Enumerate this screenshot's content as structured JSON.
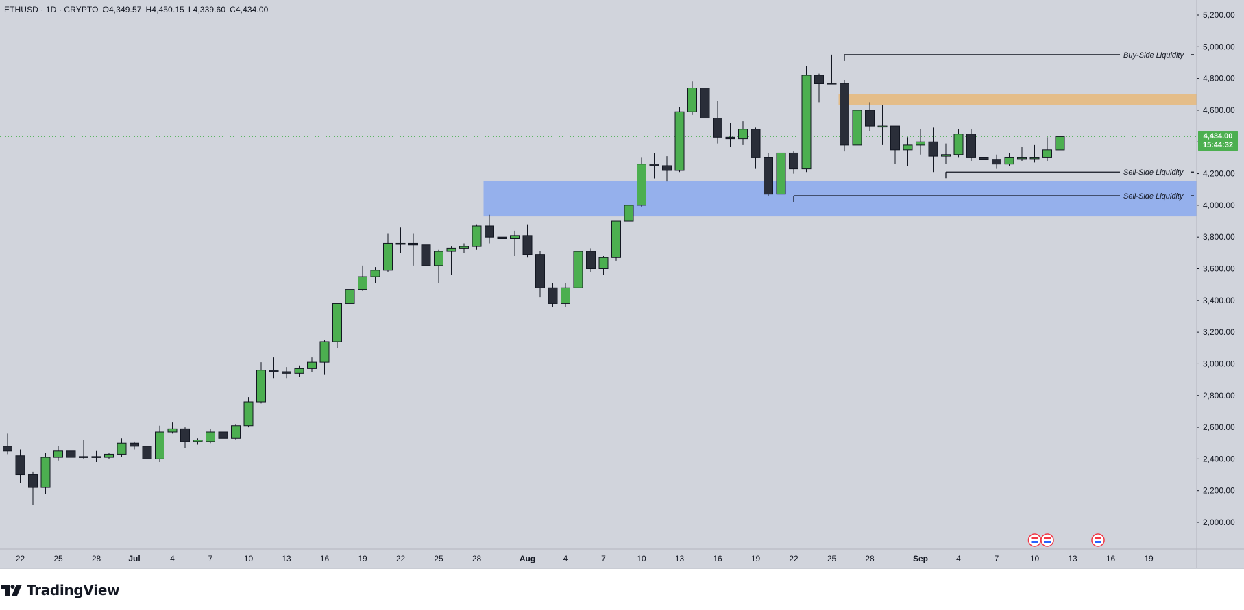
{
  "legend": {
    "symbol": "ETHUSD · 1D · CRYPTO",
    "open": "O4,349.57",
    "high": "H4,450.15",
    "low": "L4,339.60",
    "close": "C4,434.00"
  },
  "price_tag": {
    "price": "4,434.00",
    "countdown": "15:44:32"
  },
  "brand": {
    "name": "TradingView"
  },
  "annotations": {
    "buy_side": "Buy-Side Liquidity",
    "sell_side_1": "Sell-Side Liquidity",
    "sell_side_2": "Sell-Side Liquidity"
  },
  "colors": {
    "up": "#4caf50",
    "down": "#2a2e39",
    "background": "#d1d4dc",
    "supply_zone": "#e8b97a",
    "demand_zone": "#8ba9ef"
  },
  "chart_data": {
    "type": "candlestick",
    "title": "",
    "xlabel": "",
    "ylabel": "",
    "ylim": [
      1840,
      5260
    ],
    "y_ticks": [
      "5,200.00",
      "5,000.00",
      "4,800.00",
      "4,600.00",
      "4,400.00",
      "4,200.00",
      "4,000.00",
      "3,800.00",
      "3,600.00",
      "3,400.00",
      "3,200.00",
      "3,000.00",
      "2,800.00",
      "2,600.00",
      "2,400.00",
      "2,200.00",
      "2,000.00"
    ],
    "x_ticks": [
      {
        "label": "22",
        "index": 1
      },
      {
        "label": "25",
        "index": 4
      },
      {
        "label": "28",
        "index": 7
      },
      {
        "label": "Jul",
        "index": 10,
        "bold": true
      },
      {
        "label": "4",
        "index": 13
      },
      {
        "label": "7",
        "index": 16
      },
      {
        "label": "10",
        "index": 19
      },
      {
        "label": "13",
        "index": 22
      },
      {
        "label": "16",
        "index": 25
      },
      {
        "label": "19",
        "index": 28
      },
      {
        "label": "22",
        "index": 31
      },
      {
        "label": "25",
        "index": 34
      },
      {
        "label": "28",
        "index": 37
      },
      {
        "label": "Aug",
        "index": 41,
        "bold": true
      },
      {
        "label": "4",
        "index": 44
      },
      {
        "label": "7",
        "index": 47
      },
      {
        "label": "10",
        "index": 50
      },
      {
        "label": "13",
        "index": 53
      },
      {
        "label": "16",
        "index": 56
      },
      {
        "label": "19",
        "index": 59
      },
      {
        "label": "22",
        "index": 62
      },
      {
        "label": "25",
        "index": 65
      },
      {
        "label": "28",
        "index": 68
      },
      {
        "label": "Sep",
        "index": 72,
        "bold": true
      },
      {
        "label": "4",
        "index": 75
      },
      {
        "label": "7",
        "index": 78
      },
      {
        "label": "10",
        "index": 81
      },
      {
        "label": "13",
        "index": 84
      },
      {
        "label": "16",
        "index": 87
      },
      {
        "label": "19",
        "index": 90
      }
    ],
    "candles": [
      {
        "o": 2480,
        "h": 2560,
        "l": 2430,
        "c": 2450
      },
      {
        "o": 2420,
        "h": 2460,
        "l": 2250,
        "c": 2300
      },
      {
        "o": 2300,
        "h": 2320,
        "l": 2110,
        "c": 2220
      },
      {
        "o": 2220,
        "h": 2440,
        "l": 2180,
        "c": 2410
      },
      {
        "o": 2410,
        "h": 2480,
        "l": 2390,
        "c": 2450
      },
      {
        "o": 2450,
        "h": 2470,
        "l": 2390,
        "c": 2410
      },
      {
        "o": 2410,
        "h": 2520,
        "l": 2400,
        "c": 2415
      },
      {
        "o": 2415,
        "h": 2450,
        "l": 2380,
        "c": 2410
      },
      {
        "o": 2410,
        "h": 2440,
        "l": 2400,
        "c": 2430
      },
      {
        "o": 2430,
        "h": 2530,
        "l": 2410,
        "c": 2500
      },
      {
        "o": 2500,
        "h": 2510,
        "l": 2460,
        "c": 2480
      },
      {
        "o": 2480,
        "h": 2500,
        "l": 2390,
        "c": 2400
      },
      {
        "o": 2400,
        "h": 2610,
        "l": 2380,
        "c": 2570
      },
      {
        "o": 2570,
        "h": 2630,
        "l": 2560,
        "c": 2590
      },
      {
        "o": 2590,
        "h": 2600,
        "l": 2470,
        "c": 2510
      },
      {
        "o": 2510,
        "h": 2530,
        "l": 2490,
        "c": 2520
      },
      {
        "o": 2510,
        "h": 2590,
        "l": 2500,
        "c": 2570
      },
      {
        "o": 2570,
        "h": 2580,
        "l": 2510,
        "c": 2530
      },
      {
        "o": 2530,
        "h": 2620,
        "l": 2520,
        "c": 2610
      },
      {
        "o": 2610,
        "h": 2790,
        "l": 2600,
        "c": 2760
      },
      {
        "o": 2760,
        "h": 3010,
        "l": 2750,
        "c": 2960
      },
      {
        "o": 2960,
        "h": 3040,
        "l": 2910,
        "c": 2950
      },
      {
        "o": 2950,
        "h": 2980,
        "l": 2910,
        "c": 2940
      },
      {
        "o": 2940,
        "h": 2990,
        "l": 2920,
        "c": 2970
      },
      {
        "o": 2970,
        "h": 3040,
        "l": 2950,
        "c": 3010
      },
      {
        "o": 3010,
        "h": 3150,
        "l": 2930,
        "c": 3140
      },
      {
        "o": 3140,
        "h": 3380,
        "l": 3100,
        "c": 3380
      },
      {
        "o": 3380,
        "h": 3480,
        "l": 3360,
        "c": 3470
      },
      {
        "o": 3470,
        "h": 3620,
        "l": 3460,
        "c": 3550
      },
      {
        "o": 3550,
        "h": 3610,
        "l": 3510,
        "c": 3590
      },
      {
        "o": 3590,
        "h": 3820,
        "l": 3580,
        "c": 3760
      },
      {
        "o": 3760,
        "h": 3860,
        "l": 3700,
        "c": 3760
      },
      {
        "o": 3760,
        "h": 3820,
        "l": 3620,
        "c": 3750
      },
      {
        "o": 3750,
        "h": 3760,
        "l": 3530,
        "c": 3620
      },
      {
        "o": 3620,
        "h": 3720,
        "l": 3510,
        "c": 3710
      },
      {
        "o": 3710,
        "h": 3740,
        "l": 3560,
        "c": 3730
      },
      {
        "o": 3730,
        "h": 3760,
        "l": 3700,
        "c": 3740
      },
      {
        "o": 3740,
        "h": 3880,
        "l": 3720,
        "c": 3870
      },
      {
        "o": 3870,
        "h": 3940,
        "l": 3760,
        "c": 3800
      },
      {
        "o": 3800,
        "h": 3870,
        "l": 3730,
        "c": 3790
      },
      {
        "o": 3790,
        "h": 3840,
        "l": 3680,
        "c": 3810
      },
      {
        "o": 3810,
        "h": 3880,
        "l": 3670,
        "c": 3690
      },
      {
        "o": 3690,
        "h": 3710,
        "l": 3420,
        "c": 3480
      },
      {
        "o": 3480,
        "h": 3510,
        "l": 3360,
        "c": 3380
      },
      {
        "o": 3380,
        "h": 3510,
        "l": 3360,
        "c": 3480
      },
      {
        "o": 3480,
        "h": 3730,
        "l": 3470,
        "c": 3710
      },
      {
        "o": 3710,
        "h": 3730,
        "l": 3580,
        "c": 3600
      },
      {
        "o": 3600,
        "h": 3680,
        "l": 3560,
        "c": 3670
      },
      {
        "o": 3670,
        "h": 3900,
        "l": 3650,
        "c": 3900
      },
      {
        "o": 3900,
        "h": 4060,
        "l": 3880,
        "c": 4000
      },
      {
        "o": 4000,
        "h": 4300,
        "l": 3990,
        "c": 4260
      },
      {
        "o": 4260,
        "h": 4330,
        "l": 4170,
        "c": 4250
      },
      {
        "o": 4250,
        "h": 4310,
        "l": 4150,
        "c": 4220
      },
      {
        "o": 4220,
        "h": 4620,
        "l": 4210,
        "c": 4590
      },
      {
        "o": 4590,
        "h": 4780,
        "l": 4570,
        "c": 4740
      },
      {
        "o": 4740,
        "h": 4790,
        "l": 4470,
        "c": 4550
      },
      {
        "o": 4550,
        "h": 4660,
        "l": 4390,
        "c": 4430
      },
      {
        "o": 4430,
        "h": 4520,
        "l": 4370,
        "c": 4420
      },
      {
        "o": 4420,
        "h": 4530,
        "l": 4380,
        "c": 4480
      },
      {
        "o": 4480,
        "h": 4490,
        "l": 4230,
        "c": 4300
      },
      {
        "o": 4300,
        "h": 4330,
        "l": 4060,
        "c": 4070
      },
      {
        "o": 4070,
        "h": 4350,
        "l": 4060,
        "c": 4330
      },
      {
        "o": 4330,
        "h": 4340,
        "l": 4200,
        "c": 4230
      },
      {
        "o": 4230,
        "h": 4880,
        "l": 4210,
        "c": 4820
      },
      {
        "o": 4820,
        "h": 4830,
        "l": 4650,
        "c": 4770
      },
      {
        "o": 4770,
        "h": 4950,
        "l": 4770,
        "c": 4770
      },
      {
        "o": 4770,
        "h": 4790,
        "l": 4340,
        "c": 4380
      },
      {
        "o": 4380,
        "h": 4620,
        "l": 4310,
        "c": 4600
      },
      {
        "o": 4600,
        "h": 4650,
        "l": 4470,
        "c": 4500
      },
      {
        "o": 4500,
        "h": 4630,
        "l": 4380,
        "c": 4500
      },
      {
        "o": 4500,
        "h": 4500,
        "l": 4260,
        "c": 4350
      },
      {
        "o": 4350,
        "h": 4430,
        "l": 4250,
        "c": 4380
      },
      {
        "o": 4380,
        "h": 4480,
        "l": 4320,
        "c": 4400
      },
      {
        "o": 4400,
        "h": 4490,
        "l": 4210,
        "c": 4310
      },
      {
        "o": 4310,
        "h": 4390,
        "l": 4260,
        "c": 4320
      },
      {
        "o": 4320,
        "h": 4480,
        "l": 4300,
        "c": 4450
      },
      {
        "o": 4450,
        "h": 4480,
        "l": 4280,
        "c": 4300
      },
      {
        "o": 4300,
        "h": 4490,
        "l": 4290,
        "c": 4290
      },
      {
        "o": 4290,
        "h": 4320,
        "l": 4230,
        "c": 4260
      },
      {
        "o": 4260,
        "h": 4330,
        "l": 4250,
        "c": 4300
      },
      {
        "o": 4300,
        "h": 4370,
        "l": 4280,
        "c": 4300
      },
      {
        "o": 4300,
        "h": 4380,
        "l": 4270,
        "c": 4300
      },
      {
        "o": 4300,
        "h": 4430,
        "l": 4280,
        "c": 4350
      },
      {
        "o": 4349.57,
        "h": 4450.15,
        "l": 4339.6,
        "c": 4434
      }
    ],
    "current_price": 4434,
    "zones": [
      {
        "name": "supply",
        "top": 4700,
        "bottom": 4630,
        "start_index": 66
      },
      {
        "name": "demand",
        "top": 4155,
        "bottom": 3930,
        "start_index": 38
      }
    ],
    "levels": [
      {
        "name": "buy_side",
        "price": 4950,
        "start_index": 66
      },
      {
        "name": "sell_side_1",
        "price": 4210,
        "start_index": 74
      },
      {
        "name": "sell_side_2",
        "price": 4060,
        "start_index": 62
      }
    ],
    "event_flags_index": [
      81,
      82,
      86
    ],
    "grid": false
  }
}
